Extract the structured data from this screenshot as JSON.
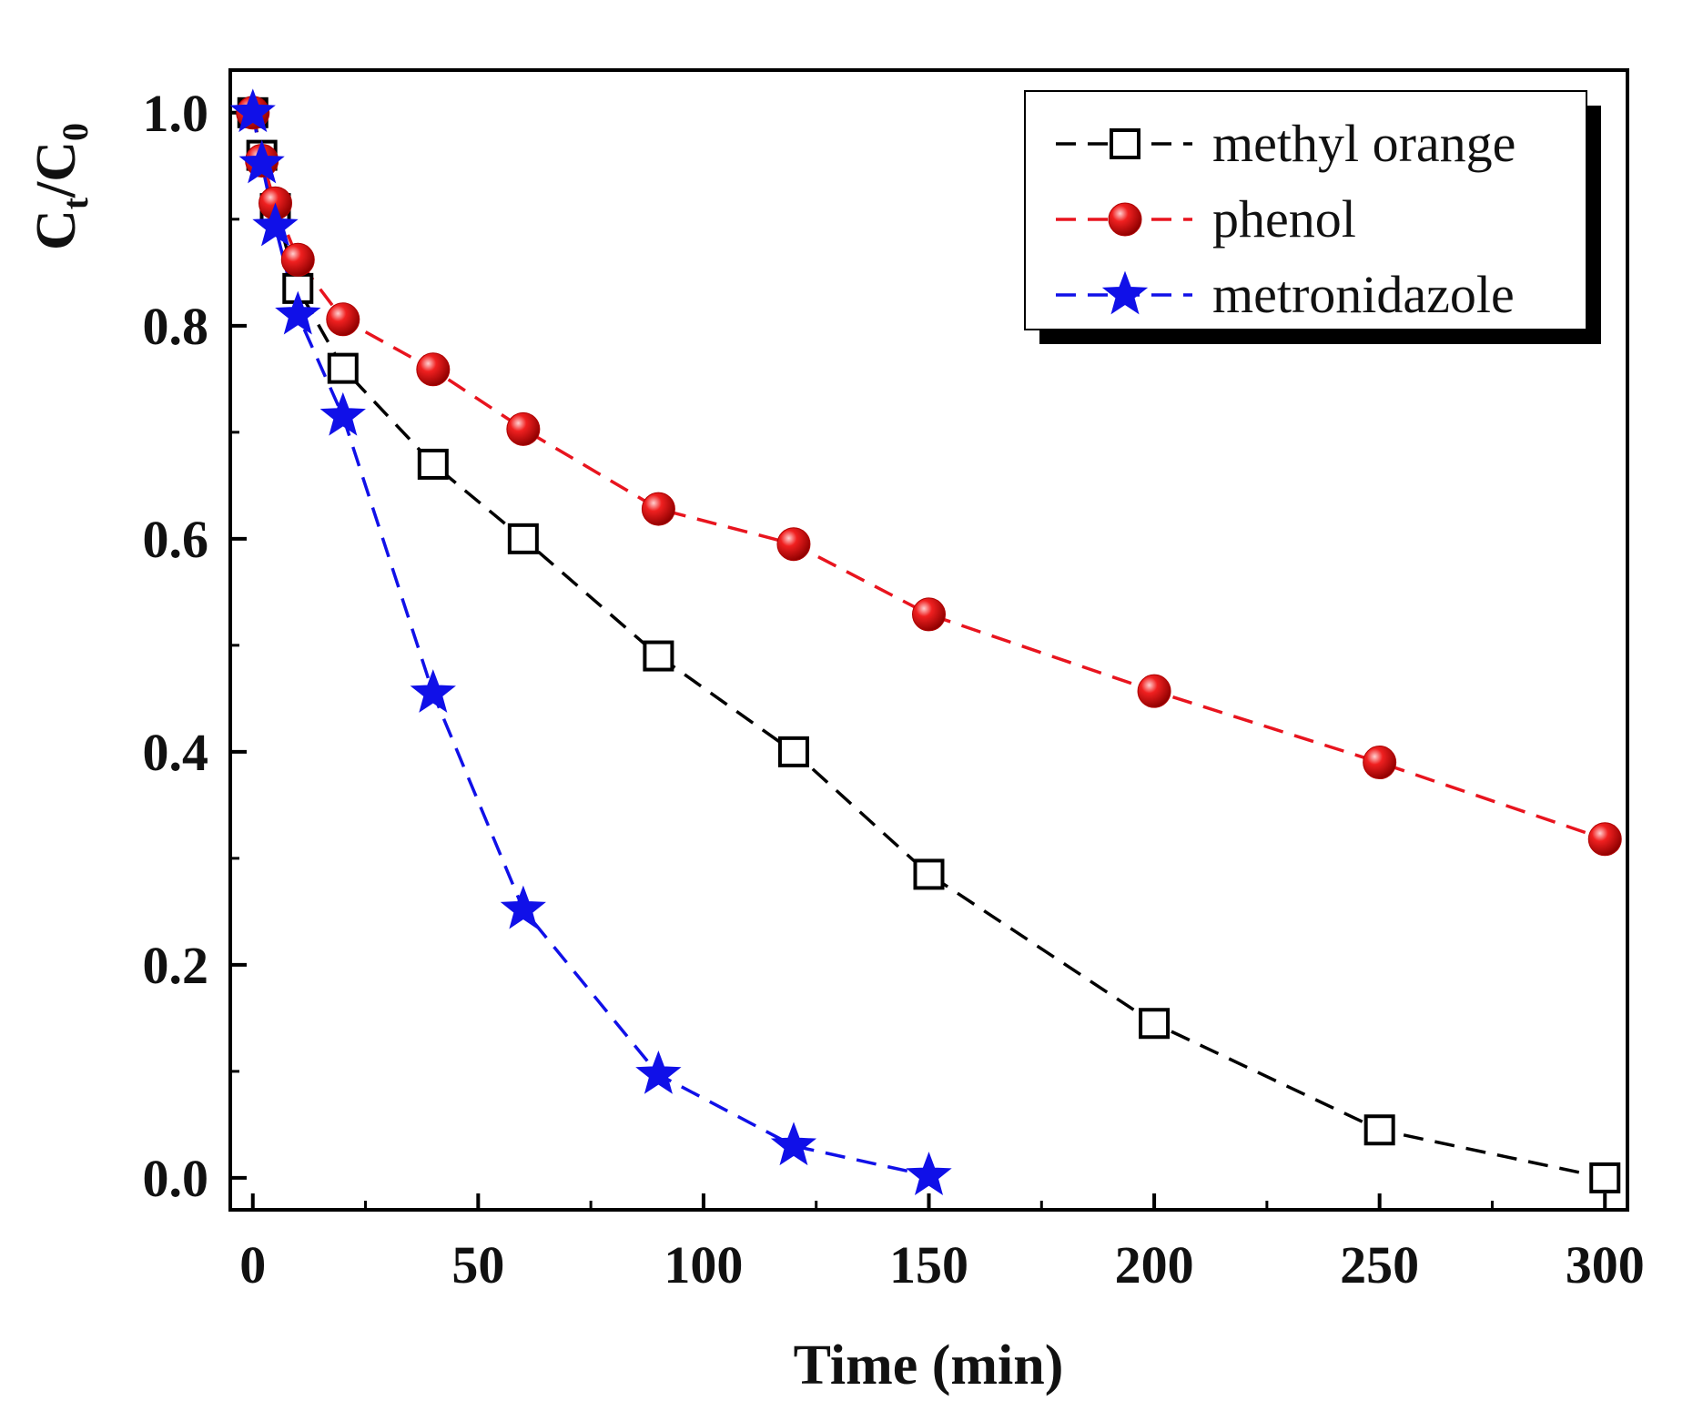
{
  "chart_data": {
    "type": "line",
    "title": "",
    "xlabel": "Time (min)",
    "ylabel_main": "C",
    "ylabel_sub_t": "t",
    "ylabel_slash": "/C",
    "ylabel_sub_0": "0",
    "xlim": [
      -5,
      305
    ],
    "ylim": [
      -0.03,
      1.04
    ],
    "xticks": [
      0,
      50,
      100,
      150,
      200,
      250,
      300
    ],
    "xtick_labels": [
      "0",
      "50",
      "100",
      "150",
      "200",
      "250",
      "300"
    ],
    "yticks": [
      0.0,
      0.2,
      0.4,
      0.6,
      0.8,
      1.0
    ],
    "ytick_labels": [
      "0.0",
      "0.2",
      "0.4",
      "0.6",
      "0.8",
      "1.0"
    ],
    "x_minor_step": 25,
    "y_minor_step": 0.1,
    "grid": false,
    "legend_position": "top-right",
    "series": [
      {
        "name": "methyl orange",
        "color": "#000000",
        "marker": "square-open",
        "x": [
          0,
          2,
          5,
          10,
          20,
          40,
          60,
          90,
          120,
          150,
          200,
          250,
          300
        ],
        "y": [
          1.0,
          0.96,
          0.91,
          0.835,
          0.76,
          0.67,
          0.6,
          0.49,
          0.4,
          0.285,
          0.145,
          0.045,
          0.0
        ]
      },
      {
        "name": "phenol",
        "color": "#e8141e",
        "marker": "sphere",
        "x": [
          0,
          2,
          5,
          10,
          20,
          40,
          60,
          90,
          120,
          150,
          200,
          250,
          300
        ],
        "y": [
          1.0,
          0.955,
          0.915,
          0.862,
          0.806,
          0.759,
          0.703,
          0.628,
          0.595,
          0.529,
          0.457,
          0.39,
          0.318
        ]
      },
      {
        "name": "metronidazole",
        "color": "#1010e8",
        "marker": "star",
        "x": [
          0,
          2,
          5,
          10,
          20,
          40,
          60,
          90,
          120,
          150
        ],
        "y": [
          1.0,
          0.952,
          0.893,
          0.81,
          0.715,
          0.455,
          0.252,
          0.097,
          0.03,
          0.002
        ]
      }
    ]
  }
}
